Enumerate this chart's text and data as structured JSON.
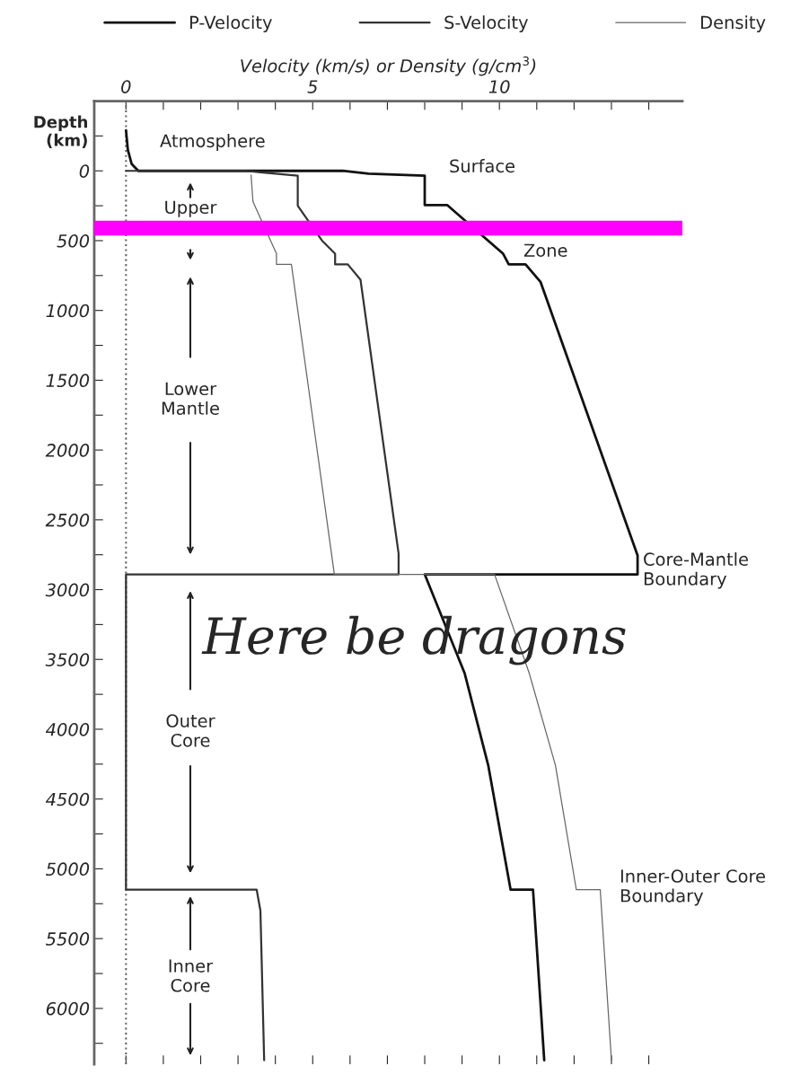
{
  "chart_data": {
    "type": "line",
    "xlabel": "Velocity (km/s) or Density (g/cm$^{3}$)",
    "ylabel": "Depth\n(km)",
    "series": [
      {
        "name": "P-Velocity",
        "color": "#111111",
        "x": [
          0.0,
          0.05,
          0.15,
          0.33,
          5.8,
          6.5,
          8.0,
          8.0,
          8.6,
          10.1,
          10.25,
          10.7,
          11.1,
          13.7,
          13.7,
          8.0,
          9.07,
          9.7,
          10.3,
          10.9,
          11.2
        ],
        "values": [
          -290,
          -150,
          -50,
          0,
          0,
          20,
          35,
          245,
          245,
          594,
          670,
          670,
          795,
          2755,
          2891,
          2891,
          3600,
          4258,
          5150,
          5150,
          6371
        ]
      },
      {
        "name": "S-Velocity",
        "color": "#333333",
        "x": [
          0.0,
          3.2,
          3.6,
          4.6,
          4.6,
          5.25,
          5.6,
          5.6,
          5.94,
          6.28,
          7.3,
          7.3,
          0.0,
          0.0,
          3.5,
          3.6,
          3.7
        ],
        "values": [
          0,
          0,
          10,
          35,
          250,
          500,
          594,
          670,
          670,
          780,
          2742,
          2891,
          2891,
          5150,
          5150,
          5300,
          6371
        ]
      },
      {
        "name": "Density",
        "color": "#666666",
        "x": [
          3.35,
          3.4,
          4.03,
          4.03,
          4.43,
          5.58,
          5.58,
          9.87,
          10.8,
          11.5,
          12.06,
          12.7,
          13.0
        ],
        "values": [
          30,
          220,
          594,
          670,
          670,
          2891,
          2891,
          2891,
          3600,
          4258,
          5150,
          5150,
          6371
        ]
      }
    ],
    "xlim": [
      -0.85,
      14.9
    ],
    "ylim": [
      6400,
      -500
    ],
    "xticks": [
      0,
      {
        "value": 1,
        "label": null
      },
      {
        "value": 2,
        "label": null
      },
      {
        "value": 3,
        "label": null
      },
      {
        "value": 4,
        "label": null
      },
      5,
      {
        "value": 6,
        "label": null
      },
      {
        "value": 7,
        "label": null
      },
      {
        "value": 8,
        "label": null
      },
      {
        "value": 9,
        "label": null
      },
      10,
      {
        "value": 11,
        "label": null
      },
      {
        "value": 12,
        "label": null
      },
      {
        "value": 13,
        "label": null
      },
      {
        "value": 14,
        "label": null
      }
    ],
    "yticks": [
      {
        "value": -250,
        "label": null
      },
      0,
      {
        "value": 250,
        "label": null
      },
      500,
      {
        "value": 750,
        "label": null
      },
      1000,
      {
        "value": 1250,
        "label": null
      },
      1500,
      {
        "value": 1750,
        "label": null
      },
      2000,
      {
        "value": 2250,
        "label": null
      },
      2500,
      {
        "value": 2750,
        "label": null
      },
      3000,
      {
        "value": 3250,
        "label": null
      },
      3500,
      {
        "value": 3750,
        "label": null
      },
      4000,
      {
        "value": 4250,
        "label": null
      },
      4500,
      {
        "value": 4750,
        "label": null
      },
      5000,
      {
        "value": 5250,
        "label": null
      },
      5500,
      {
        "value": 5750,
        "label": null
      },
      6000,
      {
        "value": 6250,
        "label": null
      }
    ],
    "ref_lines": [
      {
        "axis": "x",
        "value": 0,
        "color": "#666666",
        "line_style": "dotted"
      },
      {
        "axis": "y",
        "value": 410,
        "color": "#ff00ff",
        "line_style": "solid"
      }
    ],
    "annotations": [
      "Atmosphere",
      "Surface",
      "Zone",
      "Core-Mantle\nBoundary",
      "Inner-Outer Core\nBoundary",
      "Upper",
      "Lower\nMantle",
      "Outer\nCore",
      "Inner\nCore",
      "Here be dragons"
    ],
    "grid": false,
    "legend": "top",
    "marker": "none",
    "line_style": "solid"
  }
}
